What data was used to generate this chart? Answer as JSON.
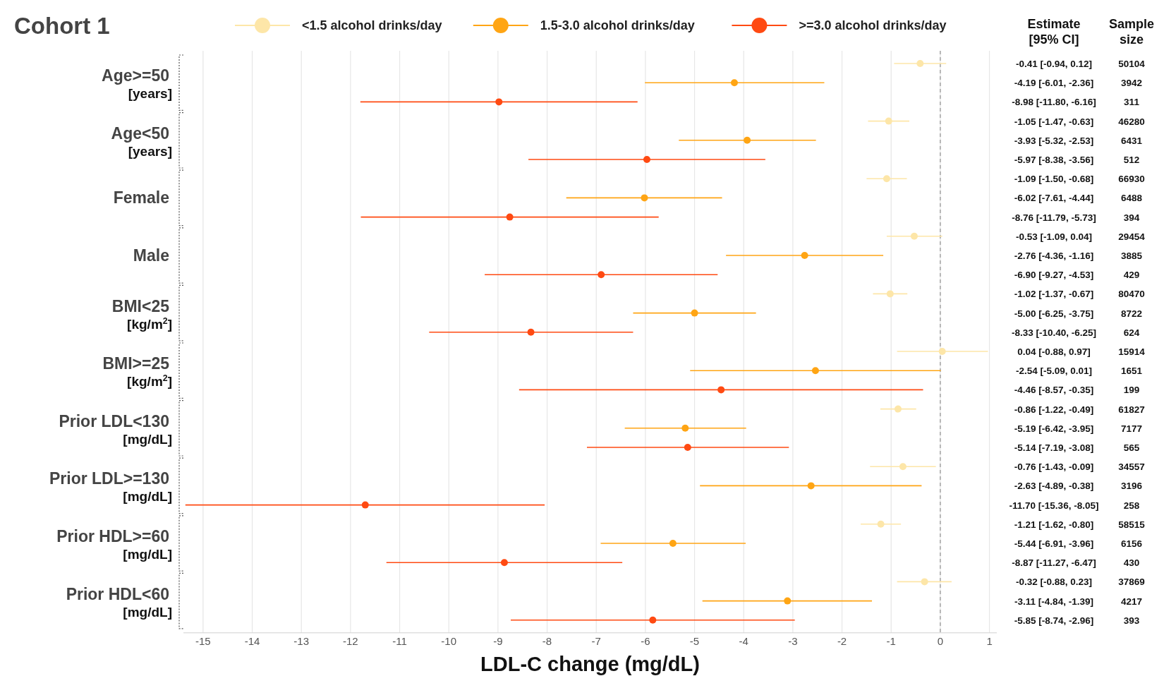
{
  "chart_data": {
    "type": "scatter",
    "orientation": "horizontal",
    "title": "Cohort 1",
    "xlabel": "LDL-C change (mg/dL)",
    "categories": [
      "Age>=50\n[years]",
      "Age<50\n[years]",
      "Female",
      "Male",
      "BMI<25\n[kg/m$^{2}$]",
      "BMI>=25\n[kg/m$^{2}$]",
      "Prior LDL<130\n[mg/dL]",
      "Prior LDL>=130\n[mg/dL]",
      "Prior HDL>=60\n[mg/dL]",
      "Prior HDL<60\n[mg/dL]"
    ],
    "series": [
      {
        "name": "<1.5 alcohol drinks/day",
        "color": "#fde6a8",
        "values": [
          -0.41,
          -1.05,
          -1.09,
          -0.53,
          -1.02,
          0.04,
          -0.86,
          -0.76,
          -1.21,
          -0.32
        ],
        "errors": [
          [
            -0.94,
            0.12
          ],
          [
            -1.47,
            -0.63
          ],
          [
            -1.5,
            -0.68
          ],
          [
            -1.09,
            0.04
          ],
          [
            -1.37,
            -0.67
          ],
          [
            -0.88,
            0.97
          ],
          [
            -1.22,
            -0.49
          ],
          [
            -1.43,
            -0.09
          ],
          [
            -1.62,
            -0.8
          ],
          [
            -0.88,
            0.23
          ]
        ]
      },
      {
        "name": "1.5-3.0 alcohol drinks/day",
        "color": "#ffa514",
        "values": [
          -4.19,
          -3.93,
          -6.02,
          -2.76,
          -5.0,
          -2.54,
          -5.19,
          -2.63,
          -5.44,
          -3.11
        ],
        "errors": [
          [
            -6.01,
            -2.36
          ],
          [
            -5.32,
            -2.53
          ],
          [
            -7.61,
            -4.44
          ],
          [
            -4.36,
            -1.16
          ],
          [
            -6.25,
            -3.75
          ],
          [
            -5.09,
            0.01
          ],
          [
            -6.42,
            -3.95
          ],
          [
            -4.89,
            -0.38
          ],
          [
            -6.91,
            -3.96
          ],
          [
            -4.84,
            -1.39
          ]
        ]
      },
      {
        "name": ">=3.0 alcohol drinks/day",
        "color": "#ff4a12",
        "values": [
          -8.98,
          -5.97,
          -8.76,
          -6.9,
          -8.33,
          -4.46,
          -5.14,
          -11.7,
          -8.87,
          -5.85
        ],
        "errors": [
          [
            -11.8,
            -6.16
          ],
          [
            -8.38,
            -3.56
          ],
          [
            -11.79,
            -5.73
          ],
          [
            -9.27,
            -4.53
          ],
          [
            -10.4,
            -6.25
          ],
          [
            -8.57,
            -0.35
          ],
          [
            -7.19,
            -3.08
          ],
          [
            -15.36,
            -8.05
          ],
          [
            -11.27,
            -6.47
          ],
          [
            -8.74,
            -2.96
          ]
        ]
      }
    ],
    "xlim": [
      -15.4,
      1.15
    ],
    "xticks": [
      -15,
      -14,
      -13,
      -12,
      -11,
      -10,
      -9,
      -8,
      -7,
      -6,
      -5,
      -4,
      -3,
      -2,
      -1,
      0,
      1
    ],
    "grid": "x",
    "legend": "top",
    "marker": "circle",
    "ref_lines": [
      {
        "axis": "x",
        "value": 0,
        "color": "#999999",
        "line_style": "dashed"
      }
    ],
    "annotations": [
      "Estimate\n[95% CI]",
      "Sample\nsize",
      "50104",
      "3942",
      "311",
      "46280",
      "6431",
      "512",
      "66930",
      "6488",
      "394",
      "29454",
      "3885",
      "429",
      "80470",
      "8722",
      "624",
      "15914",
      "1651",
      "199",
      "61827",
      "7177",
      "565",
      "34557",
      "3196",
      "258",
      "58515",
      "6156",
      "430",
      "37869",
      "4217",
      "393",
      "-0.41 [-0.94, 0.12]",
      "-4.19 [-6.01, -2.36]",
      "-8.98 [-11.80, -6.16]",
      "-1.05 [-1.47, -0.63]",
      "-3.93 [-5.32, -2.53]",
      "-5.97 [-8.38, -3.56]",
      "-1.09 [-1.50, -0.68]",
      "-6.02 [-7.61, -4.44]",
      "-8.76 [-11.79, -5.73]",
      "-0.53 [-1.09, 0.04]",
      "-2.76 [-4.36, -1.16]",
      "-6.90 [-9.27, -4.53]",
      "-1.02 [-1.37, -0.67]",
      "-5.00 [-6.25, -3.75]",
      "-8.33 [-10.40, -6.25]",
      "0.04 [-0.88, 0.97]",
      "-2.54 [-5.09, 0.01]",
      "-4.46 [-8.57, -0.35]",
      "-0.86 [-1.22, -0.49]",
      "-5.19 [-6.42, -3.95]",
      "-5.14 [-7.19, -3.08]",
      "-0.76 [-1.43, -0.09]",
      "-2.63 [-4.89, -0.38]",
      "-11.70 [-15.36, -8.05]",
      "-1.21 [-1.62, -0.80]",
      "-5.44 [-6.91, -3.96]",
      "-8.87 [-11.27, -6.47]",
      "-0.32 [-0.88, 0.23]",
      "-3.11 [-4.84, -1.39]",
      "-5.85 [-8.74, -2.96]"
    ]
  }
}
